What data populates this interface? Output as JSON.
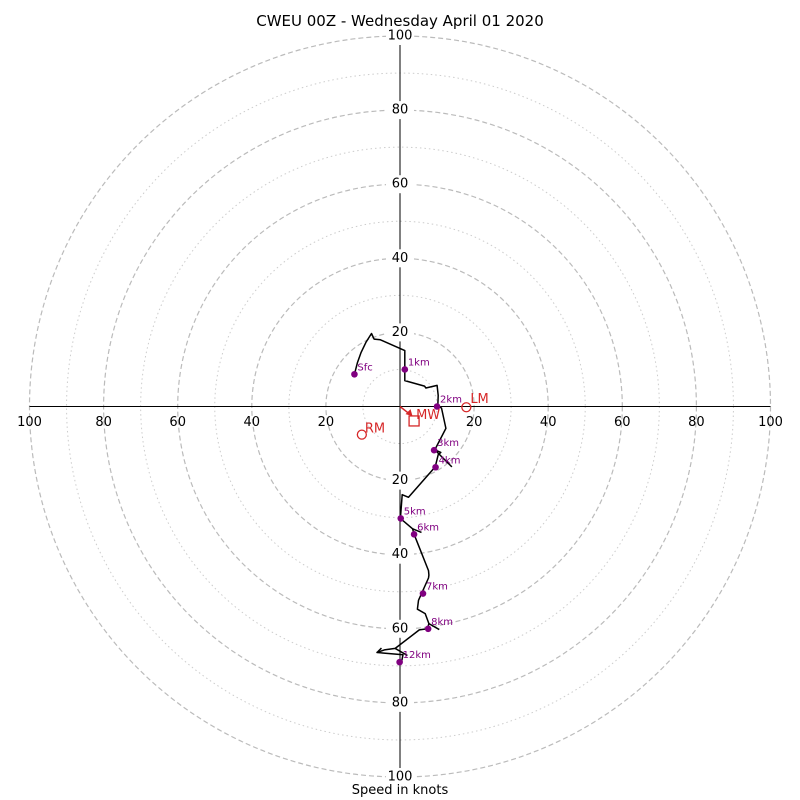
{
  "chart_data": {
    "type": "hodograph",
    "title": "CWEU 00Z - Wednesday April 01 2020",
    "xlabel": "Speed in knots",
    "range": [
      -100,
      100
    ],
    "rings_major": [
      20,
      40,
      60,
      80,
      100
    ],
    "rings_minor": [
      10,
      30,
      50,
      70,
      90
    ],
    "tick_labels": [
      "20",
      "40",
      "60",
      "80",
      "100"
    ],
    "colors": {
      "trace": "#000000",
      "height_markers": "#800080",
      "motion": "#d62728",
      "ring": "#bbbbbb",
      "ring_minor": "#cccccc"
    },
    "trace": [
      [
        -12.3,
        8.7
      ],
      [
        -11.5,
        11.8
      ],
      [
        -10.5,
        14.6
      ],
      [
        -9.2,
        17.3
      ],
      [
        -7.7,
        19.7
      ],
      [
        -7.0,
        18.2
      ],
      [
        -5.3,
        18.0
      ],
      [
        1.3,
        15.1
      ],
      [
        1.3,
        9.9
      ],
      [
        1.3,
        7.0
      ],
      [
        6.6,
        5.5
      ],
      [
        7.0,
        5.0
      ],
      [
        10.0,
        5.7
      ],
      [
        10.3,
        3.0
      ],
      [
        10.2,
        0.1
      ],
      [
        11.2,
        -0.4
      ],
      [
        12.4,
        -5.9
      ],
      [
        9.4,
        -11.7
      ],
      [
        11.0,
        -12.4
      ],
      [
        10.3,
        -13.0
      ],
      [
        9.5,
        -16.3
      ],
      [
        2.3,
        -24.5
      ],
      [
        0.6,
        -23.8
      ],
      [
        0.1,
        -30.2
      ],
      [
        3.4,
        -33.0
      ],
      [
        3.8,
        -34.5
      ],
      [
        7.7,
        -44.3
      ],
      [
        7.8,
        -45.5
      ],
      [
        7.7,
        -46.3
      ],
      [
        5.0,
        -52.3
      ],
      [
        4.7,
        -54.7
      ],
      [
        6.8,
        -55.9
      ],
      [
        7.8,
        -58.6
      ],
      [
        7.4,
        -60.0
      ],
      [
        5.2,
        -60.3
      ],
      [
        -1.3,
        -65.3
      ],
      [
        -4.2,
        -65.7
      ],
      [
        -6.2,
        -66.4
      ],
      [
        0.8,
        -67.0
      ],
      [
        0.4,
        -69.0
      ]
    ],
    "barbs": [
      [
        [
          9.4,
          -11.7
        ],
        [
          14.0,
          -16.3
        ]
      ],
      [
        [
          3.4,
          -33.0
        ],
        [
          5.8,
          -34.0
        ]
      ],
      [
        [
          7.8,
          -58.6
        ],
        [
          10.6,
          -60.2
        ]
      ],
      [
        [
          -1.3,
          -65.3
        ],
        [
          2.0,
          -67.2
        ]
      ],
      [
        [
          -6.2,
          -66.4
        ],
        [
          -5.0,
          -65.2
        ]
      ]
    ],
    "height_markers": [
      {
        "label": "Sfc",
        "u": -12.3,
        "v": 8.7
      },
      {
        "label": "1km",
        "u": 1.3,
        "v": 10.0
      },
      {
        "label": "2km",
        "u": 10.0,
        "v": 0.0
      },
      {
        "label": "3km",
        "u": 9.2,
        "v": -11.8
      },
      {
        "label": "4km",
        "u": 9.6,
        "v": -16.4
      },
      {
        "label": "5km",
        "u": 0.2,
        "v": -30.2
      },
      {
        "label": "6km",
        "u": 3.8,
        "v": -34.5
      },
      {
        "label": "7km",
        "u": 6.2,
        "v": -50.5
      },
      {
        "label": "8km",
        "u": 7.6,
        "v": -60.0
      },
      {
        "label": "12km",
        "u": -0.1,
        "v": -69.0
      }
    ],
    "storm_motion": {
      "RM": {
        "label": "RM",
        "u": -10.3,
        "v": -7.6
      },
      "LM": {
        "label": "LM",
        "u": 17.9,
        "v": -0.2
      },
      "MW": {
        "label": "MW",
        "u": 3.8,
        "v": -3.9
      },
      "mean_wind_vector": {
        "u": 2.3,
        "v": -1.8
      }
    }
  }
}
